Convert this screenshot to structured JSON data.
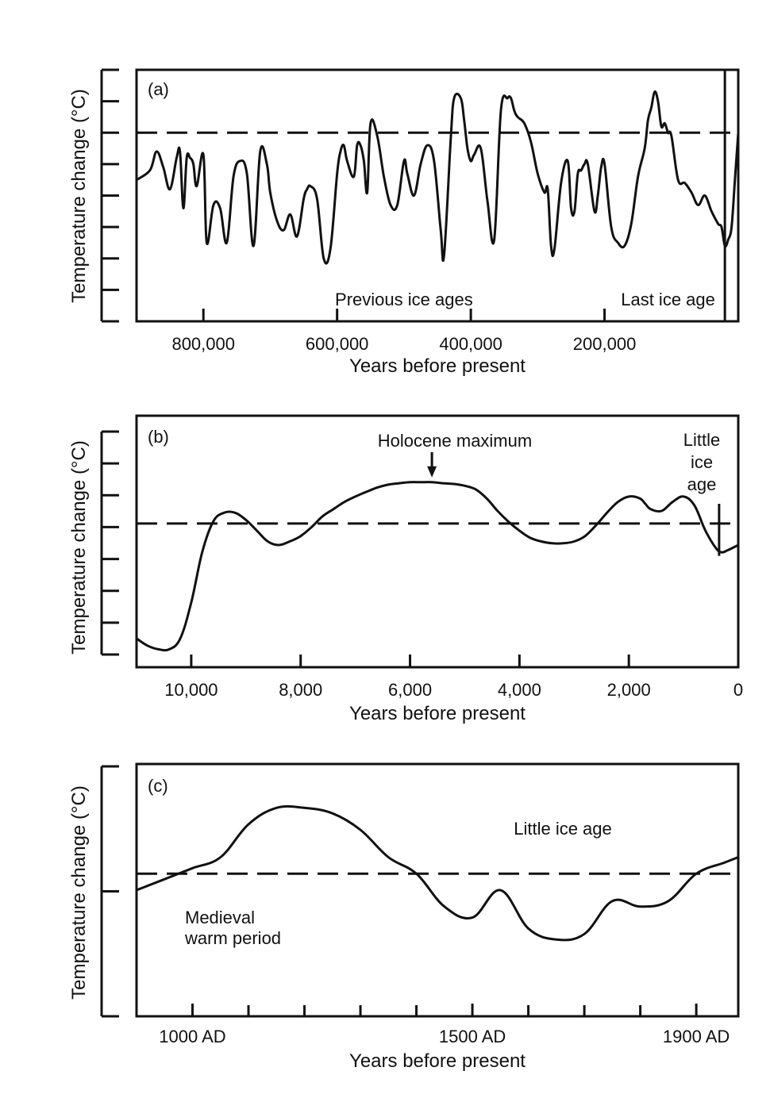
{
  "chart_data": [
    {
      "type": "line",
      "panel_label": "(a)",
      "ylabel": "Temperature change (°C)",
      "xlabel": "Years before present",
      "x_tick_labels": [
        "800,000",
        "600,000",
        "400,000",
        "200,000"
      ],
      "x_ticks": [
        800000,
        600000,
        400000,
        200000
      ],
      "xlim": [
        900000,
        0
      ],
      "ylim": [
        -6,
        2
      ],
      "y_tick_count": 9,
      "reference_line": 0,
      "annotations": [
        {
          "text": "Previous ice ages",
          "x": 500000,
          "y": -4.3
        },
        {
          "text": "Last ice age",
          "x": 105000,
          "y": -4.3
        }
      ],
      "vertical_marker_x": 20000,
      "series": [
        {
          "x": [
            900000,
            880000,
            870000,
            860000,
            850000,
            840000,
            835000,
            830000,
            825000,
            820000,
            815000,
            810000,
            800000,
            795000,
            785000,
            775000,
            765000,
            755000,
            745000,
            735000,
            725000,
            715000,
            705000,
            700000,
            690000,
            680000,
            670000,
            660000,
            650000,
            645000,
            640000,
            630000,
            620000,
            610000,
            600000,
            595000,
            590000,
            585000,
            575000,
            570000,
            565000,
            560000,
            555000,
            550000,
            540000,
            530000,
            520000,
            510000,
            500000,
            495000,
            485000,
            475000,
            465000,
            455000,
            445000,
            440000,
            430000,
            425000,
            415000,
            410000,
            405000,
            400000,
            395000,
            385000,
            375000,
            365000,
            355000,
            345000,
            340000,
            335000,
            330000,
            320000,
            310000,
            300000,
            290000,
            285000,
            280000,
            275000,
            265000,
            255000,
            250000,
            245000,
            240000,
            235000,
            230000,
            225000,
            215000,
            210000,
            205000,
            200000,
            190000,
            180000,
            170000,
            160000,
            150000,
            140000,
            135000,
            130000,
            125000,
            120000,
            115000,
            110000,
            105000,
            100000,
            90000,
            80000,
            70000,
            60000,
            50000,
            40000,
            30000,
            25000,
            20000,
            15000,
            10000,
            5000,
            0
          ],
          "y": [
            -1.5,
            -1.2,
            -0.6,
            -1.1,
            -1.8,
            -0.8,
            -0.6,
            -2.4,
            -0.8,
            -0.8,
            -1.0,
            -1.7,
            -0.7,
            -3.5,
            -2.3,
            -2.4,
            -3.5,
            -1.4,
            -0.9,
            -1.3,
            -3.6,
            -0.6,
            -1.0,
            -1.9,
            -2.8,
            -3.1,
            -2.6,
            -3.3,
            -2.1,
            -1.8,
            -1.7,
            -2.1,
            -4.0,
            -3.7,
            -1.3,
            -0.6,
            -0.4,
            -0.9,
            -1.4,
            -0.4,
            -0.4,
            -0.9,
            -1.9,
            0.3,
            -0.1,
            -1.4,
            -2.3,
            -2.3,
            -0.9,
            -1.3,
            -2.0,
            -1.0,
            -0.4,
            -0.9,
            -3.1,
            -3.9,
            -0.2,
            1.1,
            1.1,
            0.4,
            -0.5,
            -0.9,
            -0.7,
            -0.5,
            -2.2,
            -3.4,
            0.7,
            1.1,
            1.1,
            0.7,
            0.5,
            0.3,
            -0.3,
            -1.3,
            -1.9,
            -1.8,
            -3.6,
            -3.7,
            -1.6,
            -0.9,
            -2.4,
            -2.5,
            -1.3,
            -1.2,
            -1.0,
            -1.0,
            -2.5,
            -2.0,
            -1.1,
            -1.0,
            -3.0,
            -3.5,
            -3.6,
            -2.9,
            -1.4,
            -0.5,
            0.4,
            0.8,
            1.3,
            1.0,
            0.2,
            0.3,
            0.0,
            -0.1,
            -1.5,
            -1.6,
            -1.9,
            -2.3,
            -2.0,
            -2.5,
            -2.9,
            -3.0,
            -3.6,
            -3.4,
            -3.0,
            -1.5,
            0.0
          ]
        }
      ]
    },
    {
      "type": "line",
      "panel_label": "(b)",
      "ylabel": "Temperature change (°C)",
      "xlabel": "Years before present",
      "x_tick_labels": [
        "10,000",
        "8,000",
        "6,000",
        "4,000",
        "2,000",
        "0"
      ],
      "x_ticks": [
        10000,
        8000,
        6000,
        4000,
        2000,
        0
      ],
      "xlim": [
        11000,
        0
      ],
      "ylim": [
        -4,
        3
      ],
      "y_tick_count": 8,
      "reference_line": 0,
      "annotations": [
        {
          "text": "Holocene maximum",
          "x": 5600,
          "y": 1.15,
          "arrow": true
        },
        {
          "text": "Little ice age",
          "x": 350,
          "y": 0.3
        }
      ],
      "vertical_marker_x": 350,
      "series": [
        {
          "x": [
            11000,
            10800,
            10600,
            10400,
            10200,
            10000,
            9800,
            9600,
            9400,
            9200,
            9000,
            8800,
            8600,
            8400,
            8200,
            8000,
            7800,
            7600,
            7400,
            7200,
            7000,
            6800,
            6600,
            6400,
            6200,
            6000,
            5800,
            5600,
            5400,
            5200,
            5000,
            4800,
            4600,
            4400,
            4200,
            4000,
            3800,
            3600,
            3400,
            3200,
            3000,
            2800,
            2600,
            2400,
            2200,
            2000,
            1800,
            1700,
            1600,
            1400,
            1200,
            1000,
            800,
            600,
            400,
            300,
            200,
            0
          ],
          "y": [
            -3.2,
            -3.4,
            -3.5,
            -3.5,
            -3.2,
            -2.2,
            -0.8,
            0.05,
            0.3,
            0.3,
            0.1,
            -0.2,
            -0.5,
            -0.6,
            -0.5,
            -0.35,
            -0.1,
            0.2,
            0.4,
            0.6,
            0.75,
            0.88,
            1.0,
            1.08,
            1.12,
            1.15,
            1.15,
            1.15,
            1.12,
            1.1,
            1.05,
            0.95,
            0.7,
            0.35,
            0.05,
            -0.2,
            -0.4,
            -0.5,
            -0.55,
            -0.55,
            -0.5,
            -0.35,
            -0.05,
            0.3,
            0.6,
            0.75,
            0.7,
            0.55,
            0.4,
            0.35,
            0.6,
            0.75,
            0.5,
            -0.2,
            -0.7,
            -0.8,
            -0.75,
            -0.6
          ]
        }
      ]
    },
    {
      "type": "line",
      "panel_label": "(c)",
      "ylabel": "Temperature change (°C)",
      "xlabel": "Years before present",
      "x_tick_labels": [
        "1000 AD",
        "1500 AD",
        "1900 AD"
      ],
      "x_ticks": [
        1000,
        1500,
        1900
      ],
      "xlim": [
        900,
        1975
      ],
      "ylim": [
        -1.3,
        1.0
      ],
      "y_tick_count": 3,
      "reference_line": 0,
      "annotations": [
        {
          "text": "Little ice age",
          "x": 1650,
          "y": 0.55
        },
        {
          "text": "Medieval",
          "x": 1060,
          "y": -0.22
        },
        {
          "text": "warm period",
          "x": 1090,
          "y": -0.4
        }
      ],
      "series": [
        {
          "x": [
            900,
            950,
            1000,
            1050,
            1100,
            1150,
            1200,
            1250,
            1300,
            1350,
            1400,
            1450,
            1500,
            1550,
            1600,
            1650,
            1700,
            1750,
            1800,
            1850,
            1900,
            1950,
            1975
          ],
          "y": [
            -0.15,
            -0.05,
            0.05,
            0.15,
            0.45,
            0.6,
            0.6,
            0.55,
            0.4,
            0.15,
            0.0,
            -0.3,
            -0.4,
            -0.15,
            -0.5,
            -0.6,
            -0.55,
            -0.25,
            -0.3,
            -0.25,
            0.0,
            0.1,
            0.15
          ]
        }
      ]
    }
  ]
}
